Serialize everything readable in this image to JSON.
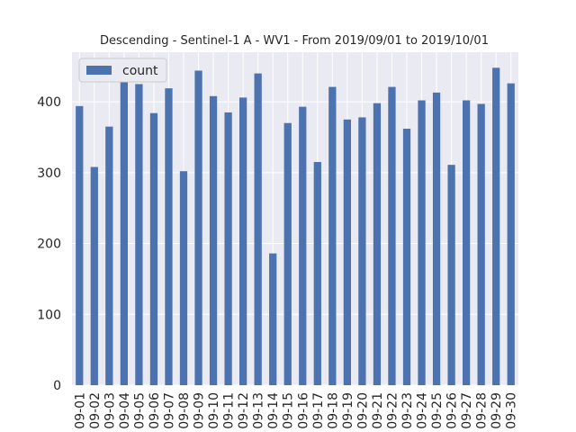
{
  "chart_data": {
    "type": "bar",
    "title": "Descending - Sentinel-1 A - WV1 - From 2019/09/01 to 2019/10/01",
    "xlabel": "",
    "ylabel": "",
    "ylim": [
      0,
      470
    ],
    "yticks": [
      0,
      100,
      200,
      300,
      400
    ],
    "grid": true,
    "legend_position": "top-left",
    "colors": {
      "bar": "#4c72b0",
      "plot_bg": "#eaeaf2",
      "grid": "#ffffff"
    },
    "categories": [
      "09-01",
      "09-02",
      "09-03",
      "09-04",
      "09-05",
      "09-06",
      "09-07",
      "09-08",
      "09-09",
      "09-10",
      "09-11",
      "09-12",
      "09-13",
      "09-14",
      "09-15",
      "09-16",
      "09-17",
      "09-18",
      "09-19",
      "09-20",
      "09-21",
      "09-22",
      "09-23",
      "09-24",
      "09-25",
      "09-26",
      "09-27",
      "09-28",
      "09-29",
      "09-30"
    ],
    "series": [
      {
        "name": "count",
        "values": [
          394,
          308,
          365,
          442,
          425,
          384,
          419,
          302,
          444,
          408,
          385,
          406,
          440,
          186,
          370,
          393,
          315,
          421,
          375,
          378,
          398,
          421,
          362,
          402,
          413,
          311,
          402,
          397,
          448,
          426
        ]
      }
    ]
  }
}
